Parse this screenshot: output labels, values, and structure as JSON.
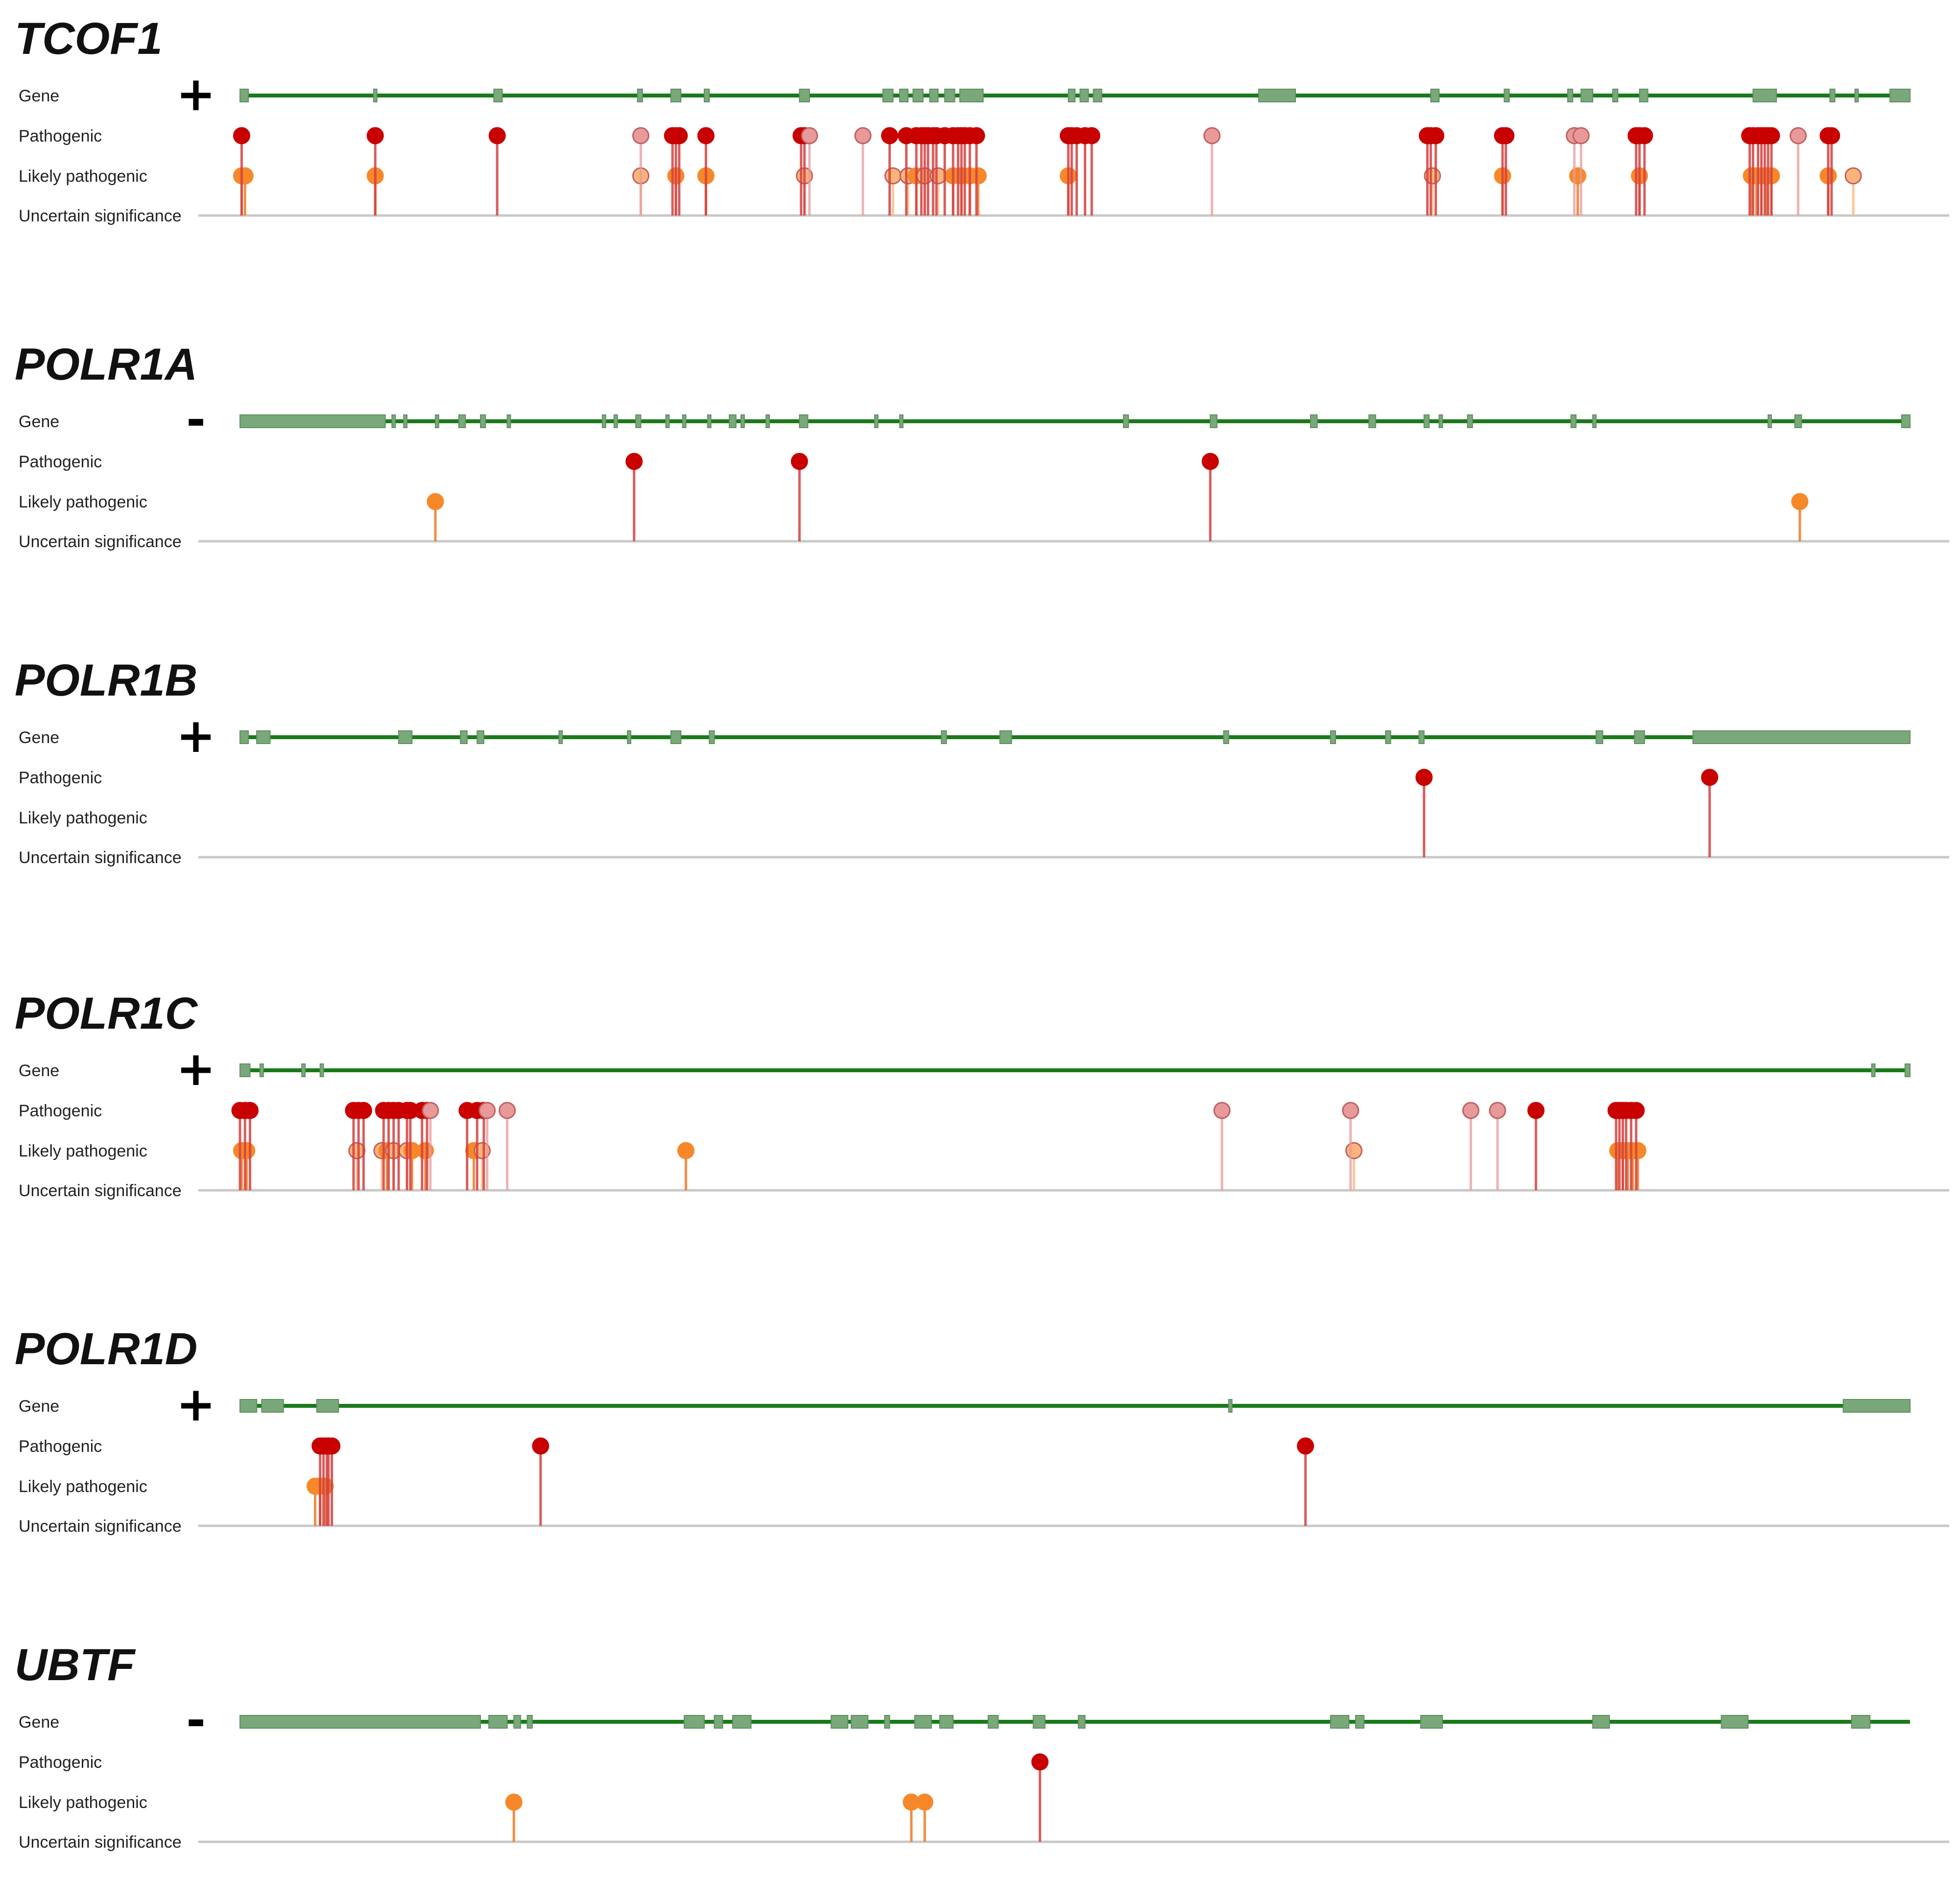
{
  "chart_data": {
    "type": "lollipop",
    "row_labels": {
      "gene": "Gene",
      "pathogenic": "Pathogenic",
      "likely_pathogenic": "Likely pathogenic",
      "uncertain": "Uncertain significance"
    },
    "position_scale": "relative position along gene track (0 = left end, 1 = right end)",
    "colors": {
      "gene_line": "#1a7a1a",
      "exon": "#7aa87a",
      "baseline": "#c8c8c8",
      "pathogenic": "#c80000",
      "pathogenic_light": "#e89a9a",
      "likely_pathogenic": "#f7882a",
      "likely_pathogenic_light": "#fbb57a"
    },
    "genes": [
      {
        "name": "TCOF1",
        "strand": "+",
        "exons": [
          [
            0,
            0.005
          ],
          [
            0.08,
            0.082
          ],
          [
            0.152,
            0.157
          ],
          [
            0.238,
            0.241
          ],
          [
            0.258,
            0.264
          ],
          [
            0.278,
            0.281
          ],
          [
            0.335,
            0.341
          ],
          [
            0.385,
            0.391
          ],
          [
            0.395,
            0.4
          ],
          [
            0.403,
            0.409
          ],
          [
            0.413,
            0.418
          ],
          [
            0.422,
            0.428
          ],
          [
            0.431,
            0.445
          ],
          [
            0.496,
            0.5
          ],
          [
            0.503,
            0.508
          ],
          [
            0.511,
            0.516
          ],
          [
            0.61,
            0.632
          ],
          [
            0.713,
            0.718
          ],
          [
            0.757,
            0.76
          ],
          [
            0.795,
            0.798
          ],
          [
            0.803,
            0.81
          ],
          [
            0.822,
            0.825
          ],
          [
            0.838,
            0.843
          ],
          [
            0.906,
            0.92
          ],
          [
            0.952,
            0.955
          ],
          [
            0.967,
            0.969
          ],
          [
            0.988,
            1.0
          ]
        ],
        "pathogenic": [
          0.001,
          0.081,
          0.154,
          0.24,
          0.259,
          0.261,
          0.263,
          0.279,
          0.336,
          0.338,
          0.341,
          0.373,
          0.389,
          0.399,
          0.405,
          0.408,
          0.41,
          0.412,
          0.415,
          0.417,
          0.422,
          0.427,
          0.43,
          0.432,
          0.434,
          0.437,
          0.441,
          0.496,
          0.498,
          0.501,
          0.506,
          0.51,
          0.582,
          0.711,
          0.713,
          0.716,
          0.756,
          0.758,
          0.799,
          0.803,
          0.836,
          0.838,
          0.841,
          0.904,
          0.906,
          0.909,
          0.911,
          0.913,
          0.915,
          0.917,
          0.933,
          0.951,
          0.953
        ],
        "pathogenic_light": [
          0.24,
          0.341,
          0.373,
          0.424,
          0.582,
          0.799,
          0.803,
          0.933
        ],
        "likely_pathogenic": [
          0.001,
          0.003,
          0.081,
          0.24,
          0.261,
          0.279,
          0.338,
          0.391,
          0.4,
          0.405,
          0.41,
          0.418,
          0.427,
          0.432,
          0.437,
          0.442,
          0.496,
          0.714,
          0.756,
          0.801,
          0.838,
          0.905,
          0.908,
          0.911,
          0.914,
          0.917,
          0.951,
          0.966
        ],
        "likely_pathogenic_light": [
          0.24,
          0.338,
          0.391,
          0.4,
          0.41,
          0.418,
          0.714,
          0.966
        ]
      },
      {
        "name": "POLR1A",
        "strand": "-",
        "exons": [
          [
            0,
            0.087
          ],
          [
            0.091,
            0.093
          ],
          [
            0.098,
            0.1
          ],
          [
            0.117,
            0.119
          ],
          [
            0.131,
            0.135
          ],
          [
            0.144,
            0.147
          ],
          [
            0.16,
            0.162
          ],
          [
            0.217,
            0.219
          ],
          [
            0.224,
            0.226
          ],
          [
            0.237,
            0.24
          ],
          [
            0.255,
            0.257
          ],
          [
            0.265,
            0.267
          ],
          [
            0.28,
            0.282
          ],
          [
            0.293,
            0.297
          ],
          [
            0.3,
            0.302
          ],
          [
            0.315,
            0.317
          ],
          [
            0.335,
            0.34
          ],
          [
            0.38,
            0.382
          ],
          [
            0.395,
            0.397
          ],
          [
            0.529,
            0.532
          ],
          [
            0.581,
            0.585
          ],
          [
            0.641,
            0.645
          ],
          [
            0.676,
            0.68
          ],
          [
            0.709,
            0.712
          ],
          [
            0.718,
            0.72
          ],
          [
            0.735,
            0.738
          ],
          [
            0.797,
            0.8
          ],
          [
            0.81,
            0.812
          ],
          [
            0.915,
            0.917
          ],
          [
            0.931,
            0.935
          ],
          [
            0.995,
            1.0
          ]
        ],
        "pathogenic": [
          0.236,
          0.335,
          0.581
        ],
        "pathogenic_light": [],
        "likely_pathogenic": [
          0.117,
          0.934
        ],
        "likely_pathogenic_light": []
      },
      {
        "name": "POLR1B",
        "strand": "+",
        "exons": [
          [
            0,
            0.005
          ],
          [
            0.01,
            0.018
          ],
          [
            0.095,
            0.103
          ],
          [
            0.132,
            0.136
          ],
          [
            0.142,
            0.146
          ],
          [
            0.191,
            0.193
          ],
          [
            0.232,
            0.234
          ],
          [
            0.258,
            0.264
          ],
          [
            0.281,
            0.284
          ],
          [
            0.42,
            0.423
          ],
          [
            0.455,
            0.462
          ],
          [
            0.589,
            0.592
          ],
          [
            0.653,
            0.656
          ],
          [
            0.686,
            0.689
          ],
          [
            0.706,
            0.709
          ],
          [
            0.812,
            0.816
          ],
          [
            0.835,
            0.841
          ],
          [
            0.87,
            1.0
          ]
        ],
        "pathogenic": [
          0.709,
          0.88
        ],
        "pathogenic_light": [],
        "likely_pathogenic": [],
        "likely_pathogenic_light": []
      },
      {
        "name": "POLR1C",
        "strand": "+",
        "exons": [
          [
            0,
            0.006
          ],
          [
            0.012,
            0.014
          ],
          [
            0.037,
            0.039
          ],
          [
            0.048,
            0.05
          ],
          [
            0.977,
            0.979
          ],
          [
            0.997,
            1.0
          ]
        ],
        "pathogenic": [
          0.0,
          0.003,
          0.006,
          0.068,
          0.071,
          0.074,
          0.086,
          0.089,
          0.092,
          0.095,
          0.1,
          0.102,
          0.109,
          0.112,
          0.114,
          0.136,
          0.142,
          0.146,
          0.148,
          0.16,
          0.588,
          0.665,
          0.737,
          0.753,
          0.776,
          0.824,
          0.826,
          0.828,
          0.83,
          0.833,
          0.836
        ],
        "pathogenic_light": [
          0.114,
          0.148,
          0.16,
          0.588,
          0.665,
          0.737,
          0.753
        ],
        "likely_pathogenic": [
          0.001,
          0.004,
          0.07,
          0.085,
          0.088,
          0.092,
          0.1,
          0.103,
          0.111,
          0.14,
          0.145,
          0.267,
          0.667,
          0.825,
          0.828,
          0.831,
          0.834,
          0.837
        ],
        "likely_pathogenic_light": [
          0.07,
          0.085,
          0.092,
          0.1,
          0.145,
          0.667
        ]
      },
      {
        "name": "POLR1D",
        "strand": "+",
        "exons": [
          [
            0,
            0.01
          ],
          [
            0.013,
            0.026
          ],
          [
            0.046,
            0.059
          ],
          [
            0.592,
            0.594
          ],
          [
            0.96,
            1.0
          ]
        ],
        "pathogenic": [
          0.048,
          0.05,
          0.052,
          0.053,
          0.055,
          0.18,
          0.638
        ],
        "pathogenic_light": [],
        "likely_pathogenic": [
          0.045,
          0.048,
          0.051
        ],
        "likely_pathogenic_light": []
      },
      {
        "name": "UBTF",
        "strand": "-",
        "exons": [
          [
            0,
            0.144
          ],
          [
            0.149,
            0.16
          ],
          [
            0.164,
            0.168
          ],
          [
            0.172,
            0.175
          ],
          [
            0.266,
            0.278
          ],
          [
            0.284,
            0.289
          ],
          [
            0.295,
            0.306
          ],
          [
            0.354,
            0.364
          ],
          [
            0.366,
            0.376
          ],
          [
            0.386,
            0.389
          ],
          [
            0.404,
            0.414
          ],
          [
            0.419,
            0.427
          ],
          [
            0.448,
            0.454
          ],
          [
            0.475,
            0.482
          ],
          [
            0.502,
            0.506
          ],
          [
            0.653,
            0.664
          ],
          [
            0.668,
            0.673
          ],
          [
            0.707,
            0.72
          ],
          [
            0.81,
            0.82
          ],
          [
            0.887,
            0.903
          ],
          [
            0.965,
            0.976
          ]
        ],
        "pathogenic": [
          0.479
        ],
        "pathogenic_light": [],
        "likely_pathogenic": [
          0.164,
          0.402,
          0.41
        ],
        "likely_pathogenic_light": []
      }
    ]
  }
}
